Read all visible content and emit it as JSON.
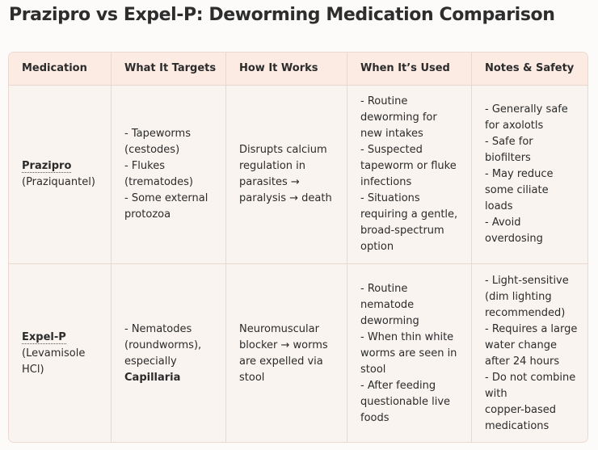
{
  "title": "Prazipro vs Expel-P: Deworming Medication Comparison",
  "table": {
    "headers": [
      "Medication",
      "What It Targets",
      "How It Works",
      "When It’s Used",
      "Notes & Safety"
    ],
    "rows": [
      {
        "name": "Prazipro",
        "generic": "(Praziquantel)",
        "targets": [
          "- Tapeworms",
          "(cestodes)",
          "- Flukes",
          "(trematodes)",
          "- Some external",
          "protozoa"
        ],
        "how": [
          "Disrupts calcium",
          "regulation in",
          "parasites →",
          "paralysis → death"
        ],
        "when": [
          "- Routine",
          "deworming for",
          "new intakes",
          "- Suspected",
          "tapeworm or fluke",
          "infections",
          "- Situations",
          "requiring a gentle,",
          "broad-spectrum",
          "option"
        ],
        "notes": [
          "- Generally safe",
          "for axolotls",
          "- Safe for",
          "biofilters",
          "- May reduce",
          "some ciliate",
          "loads",
          "- Avoid",
          "overdosing"
        ]
      },
      {
        "name": "Expel-P",
        "generic_lines": [
          "(Levamisole",
          "HCl)"
        ],
        "targets": [
          "- Nematodes",
          "(roundworms),",
          "especially"
        ],
        "targets_bold": "Capillaria",
        "how": [
          "Neuromuscular",
          "blocker → worms",
          "are expelled via",
          "stool"
        ],
        "when": [
          "- Routine",
          "nematode",
          "deworming",
          "- When thin white",
          "worms are seen in",
          "stool",
          "- After feeding",
          "questionable live",
          "foods"
        ],
        "notes": [
          "- Light-sensitive",
          "(dim lighting",
          "recommended)",
          "- Requires a large",
          "water change",
          "after 24 hours",
          "- Do not combine",
          "with",
          "copper-based",
          "medications"
        ]
      }
    ]
  }
}
